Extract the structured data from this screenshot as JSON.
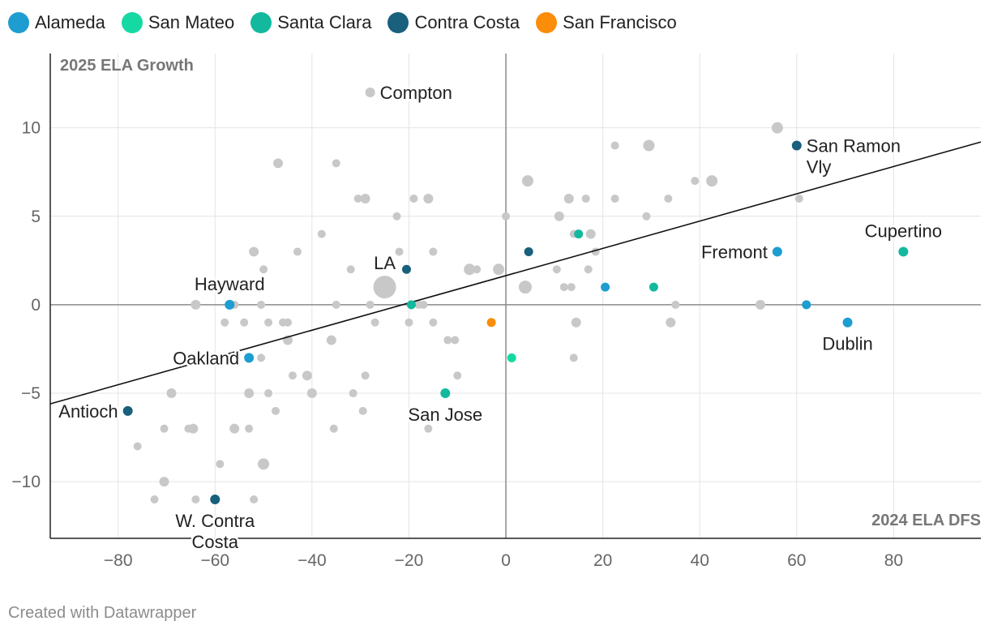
{
  "chart_data": {
    "type": "scatter",
    "title": "",
    "xlabel": "2024 ELA DFS",
    "ylabel": "2025 ELA Growth",
    "xlim": [
      -94,
      98
    ],
    "ylim": [
      -13.2,
      14.2
    ],
    "xticks": [
      -80,
      -60,
      -40,
      -20,
      0,
      20,
      40,
      60,
      80
    ],
    "xtick_labels": [
      "−80",
      "−60",
      "−40",
      "−20",
      "0",
      "20",
      "40",
      "60",
      "80"
    ],
    "yticks": [
      -10,
      -5,
      0,
      5,
      10
    ],
    "ytick_labels": [
      "−10",
      "−5",
      "0",
      "5",
      "10"
    ],
    "grid": true,
    "trendline": {
      "x1": -94,
      "y1": -5.6,
      "x2": 98,
      "y2": 9.2
    },
    "legend": {
      "position": "top-left",
      "entries": [
        {
          "name": "Alameda",
          "color": "#1d9dd0"
        },
        {
          "name": "San Mateo",
          "color": "#15d9a3"
        },
        {
          "name": "Santa Clara",
          "color": "#12b99e"
        },
        {
          "name": "Contra Costa",
          "color": "#18607c"
        },
        {
          "name": "San Francisco",
          "color": "#fb8d0b"
        }
      ]
    },
    "other_color": "#c8c8c8",
    "highlighted": [
      {
        "label": "San Ramon Vly",
        "lines": [
          "San Ramon",
          "Vly"
        ],
        "county": "Contra Costa",
        "x": 60,
        "y": 9,
        "label_pos": "right"
      },
      {
        "label": "Cupertino",
        "lines": [
          "Cupertino"
        ],
        "county": "Santa Clara",
        "x": 82,
        "y": 3,
        "label_pos": "above"
      },
      {
        "label": "Fremont",
        "lines": [
          "Fremont"
        ],
        "county": "Alameda",
        "x": 56,
        "y": 3,
        "label_pos": "left"
      },
      {
        "label": "Dublin",
        "lines": [
          "Dublin"
        ],
        "county": "Alameda",
        "x": 70.5,
        "y": -1,
        "label_pos": "below"
      },
      {
        "label": "LA",
        "lines": [
          "LA"
        ],
        "county": null,
        "x": -25,
        "y": 1,
        "size": 14,
        "label_pos": "aboveleft"
      },
      {
        "label": "Compton",
        "lines": [
          "Compton"
        ],
        "county": null,
        "x": -28,
        "y": 12,
        "label_pos": "right"
      },
      {
        "label": "Hayward",
        "lines": [
          "Hayward"
        ],
        "county": "Alameda",
        "x": -57,
        "y": 0,
        "label_pos": "above"
      },
      {
        "label": "Oakland",
        "lines": [
          "Oakland"
        ],
        "county": "Alameda",
        "x": -53,
        "y": -3,
        "label_pos": "left"
      },
      {
        "label": "Antioch",
        "lines": [
          "Antioch"
        ],
        "county": "Contra Costa",
        "x": -78,
        "y": -6,
        "label_pos": "left"
      },
      {
        "label": "San Jose",
        "lines": [
          "San Jose"
        ],
        "county": "Santa Clara",
        "x": -12.5,
        "y": -5,
        "label_pos": "below"
      },
      {
        "label": "W. Contra Costa",
        "lines": [
          "W. Contra",
          "Costa"
        ],
        "county": "Contra Costa",
        "x": -60,
        "y": -11,
        "label_pos": "below"
      }
    ],
    "colored_unlabeled": [
      {
        "county": "Contra Costa",
        "x": -20.5,
        "y": 2
      },
      {
        "county": "Contra Costa",
        "x": 4.7,
        "y": 3
      },
      {
        "county": "Santa Clara",
        "x": -19.5,
        "y": 0
      },
      {
        "county": "Santa Clara",
        "x": 15,
        "y": 4
      },
      {
        "county": "Santa Clara",
        "x": 30.5,
        "y": 1
      },
      {
        "county": "Alameda",
        "x": 20.5,
        "y": 1
      },
      {
        "county": "Alameda",
        "x": 62,
        "y": 0
      },
      {
        "county": "San Mateo",
        "x": 1.2,
        "y": -3
      },
      {
        "county": "San Francisco",
        "x": -3,
        "y": -1
      }
    ],
    "others": [
      [
        -47,
        8,
        6
      ],
      [
        -35,
        8,
        5
      ],
      [
        -30.5,
        6,
        5
      ],
      [
        -29,
        6,
        6
      ],
      [
        -19,
        6,
        5
      ],
      [
        -16,
        6,
        6
      ],
      [
        -22.5,
        5,
        5
      ],
      [
        -38,
        4,
        5
      ],
      [
        -52,
        3,
        6
      ],
      [
        -43,
        3,
        5
      ],
      [
        -22,
        3,
        5
      ],
      [
        -15,
        3,
        5
      ],
      [
        -50,
        2,
        5
      ],
      [
        -32,
        2,
        5
      ],
      [
        -7.5,
        2,
        7
      ],
      [
        -6,
        2,
        5
      ],
      [
        -1.5,
        2,
        7
      ],
      [
        -64,
        0,
        6
      ],
      [
        -56,
        0,
        5
      ],
      [
        -50.5,
        0,
        5
      ],
      [
        -35,
        0,
        5
      ],
      [
        -28,
        0,
        5
      ],
      [
        -18,
        0,
        5
      ],
      [
        -17,
        0,
        5
      ],
      [
        -58,
        -1,
        5
      ],
      [
        -54,
        -1,
        5
      ],
      [
        -49,
        -1,
        5
      ],
      [
        -46,
        -1,
        5
      ],
      [
        -45,
        -1,
        5
      ],
      [
        -27,
        -1,
        5
      ],
      [
        -20,
        -1,
        5
      ],
      [
        -15,
        -1,
        5
      ],
      [
        -45,
        -2,
        6
      ],
      [
        -36,
        -2,
        6
      ],
      [
        -12,
        -2,
        5
      ],
      [
        -10.5,
        -2,
        5
      ],
      [
        -50.5,
        -3,
        5
      ],
      [
        -44,
        -4,
        5
      ],
      [
        -41,
        -4,
        6
      ],
      [
        -29,
        -4,
        5
      ],
      [
        -10,
        -4,
        5
      ],
      [
        -69,
        -5,
        6
      ],
      [
        -53,
        -5,
        6
      ],
      [
        -49,
        -5,
        5
      ],
      [
        -40,
        -5,
        6
      ],
      [
        -31.5,
        -5,
        5
      ],
      [
        -47.5,
        -6,
        5
      ],
      [
        -29.5,
        -6,
        5
      ],
      [
        -65.5,
        -7,
        5
      ],
      [
        -64.5,
        -7,
        6
      ],
      [
        -70.5,
        -7,
        5
      ],
      [
        -56,
        -7,
        6
      ],
      [
        -53,
        -7,
        5
      ],
      [
        -35.5,
        -7,
        5
      ],
      [
        -16,
        -7,
        5
      ],
      [
        -76,
        -8,
        5
      ],
      [
        -59,
        -9,
        5
      ],
      [
        -50,
        -9,
        7
      ],
      [
        -70.5,
        -10,
        6
      ],
      [
        -72.5,
        -11,
        5
      ],
      [
        -64,
        -11,
        5
      ],
      [
        -52,
        -11,
        5
      ],
      [
        56,
        10,
        7
      ],
      [
        22.5,
        9,
        5
      ],
      [
        29.5,
        9,
        7
      ],
      [
        4.5,
        7,
        7
      ],
      [
        39,
        7,
        5
      ],
      [
        42.5,
        7,
        7
      ],
      [
        13,
        6,
        6
      ],
      [
        16.5,
        6,
        5
      ],
      [
        22.5,
        6,
        5
      ],
      [
        33.5,
        6,
        5
      ],
      [
        60.5,
        6,
        5
      ],
      [
        0,
        5,
        5
      ],
      [
        11,
        5,
        6
      ],
      [
        29,
        5,
        5
      ],
      [
        14,
        4,
        5
      ],
      [
        17.5,
        4,
        6
      ],
      [
        18.5,
        3,
        5
      ],
      [
        10.5,
        2,
        5
      ],
      [
        17,
        2,
        5
      ],
      [
        4,
        1,
        8
      ],
      [
        12,
        1,
        5
      ],
      [
        13.5,
        1,
        5
      ],
      [
        35,
        0,
        5
      ],
      [
        52.5,
        0,
        6
      ],
      [
        14.5,
        -1,
        6
      ],
      [
        34,
        -1,
        6
      ],
      [
        14,
        -3,
        5
      ]
    ]
  },
  "footer": {
    "text": "Created with Datawrapper"
  }
}
